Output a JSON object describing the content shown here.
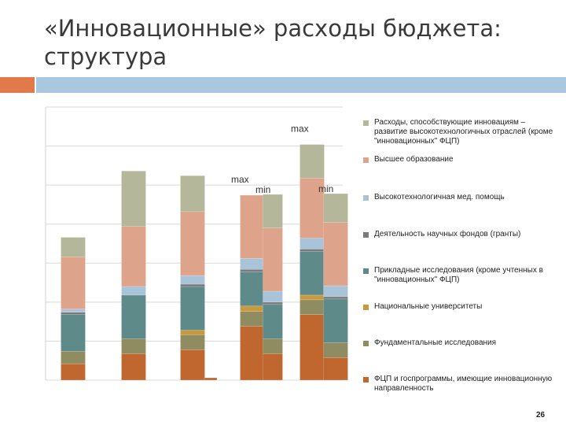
{
  "slide": {
    "title": "«Инновационные» расходы бюджета: структура",
    "page_number": "26",
    "accent_color": "#e07a4a",
    "bar_color": "#a9c7de"
  },
  "chart_data": {
    "type": "bar",
    "stacked": true,
    "title": "",
    "xlabel": "",
    "ylabel": "",
    "ylim": [
      0,
      350
    ],
    "grid": true,
    "legend_position": "right",
    "categories": [
      "",
      "",
      "",
      "",
      "",
      "",
      "",
      ""
    ],
    "series": [
      {
        "name": "ФЦП и госпрограммы, имеющие инновационную направленность",
        "color": "#c0662f",
        "values": [
          21,
          34,
          39,
          3,
          69,
          34,
          84,
          29
        ]
      },
      {
        "name": "Фундаментальные исследования",
        "color": "#8f8c62",
        "values": [
          16,
          19,
          19,
          0,
          19,
          19,
          19,
          19
        ]
      },
      {
        "name": "Национальные университеты",
        "color": "#c89a3c",
        "values": [
          0,
          0,
          6,
          0,
          7,
          0,
          6,
          0
        ]
      },
      {
        "name": "Прикладные исследования (кроме учтенных в \"инновационных\" ФЦП)",
        "color": "#5e8a8a",
        "values": [
          47,
          56,
          56,
          0,
          44,
          44,
          56,
          56
        ]
      },
      {
        "name": "Деятельность научных фондов (гранты)",
        "color": "#7a7a7a",
        "values": [
          3,
          0,
          3,
          0,
          3,
          3,
          3,
          3
        ]
      },
      {
        "name": "Высокотехнологичная мед. помощь",
        "color": "#a9c4d9",
        "values": [
          4,
          11,
          11,
          0,
          14,
          14,
          14,
          14
        ]
      },
      {
        "name": "Высшее образование",
        "color": "#dda48b",
        "values": [
          67,
          77,
          82,
          0,
          81,
          81,
          77,
          81
        ]
      },
      {
        "name": "Расходы, способствующие инновациям – развитие высокотехнологичных отраслей (кроме \"инновационных\" ФЦП)",
        "color": "#b5b79a",
        "values": [
          25,
          71,
          46,
          0,
          0,
          43,
          43,
          37
        ]
      }
    ],
    "annotations": [
      {
        "text": "max",
        "category_index": 4
      },
      {
        "text": "min",
        "category_index": 5
      },
      {
        "text": "max",
        "category_index": 6
      },
      {
        "text": "min",
        "category_index": 7
      }
    ]
  }
}
